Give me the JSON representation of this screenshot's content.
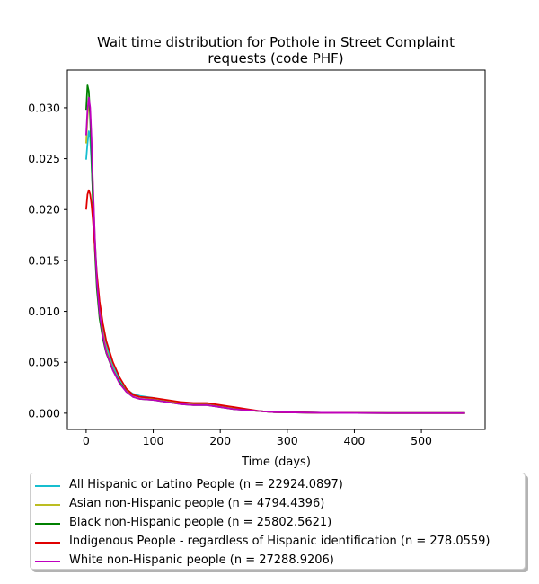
{
  "chart_data": {
    "type": "line",
    "title_lines": [
      "Wait time distribution  for Pothole in Street Complaint",
      "requests (code PHF)"
    ],
    "xlabel": "Time (days)",
    "ylabel": "",
    "xlim": [
      -28,
      595
    ],
    "ylim": [
      -0.0016,
      0.0337
    ],
    "xticks": [
      0,
      100,
      200,
      300,
      400,
      500
    ],
    "xtick_labels": [
      "0",
      "100",
      "200",
      "300",
      "400",
      "500"
    ],
    "yticks": [
      0.0,
      0.005,
      0.01,
      0.015,
      0.02,
      0.025,
      0.03
    ],
    "ytick_labels": [
      "0.000",
      "0.005",
      "0.010",
      "0.015",
      "0.020",
      "0.025",
      "0.030"
    ],
    "grid": false,
    "legend_position": "below plot",
    "series": [
      {
        "name": "All Hispanic or Latino People (n = 22924.0897)",
        "color": "#17becf",
        "x": [
          0,
          2,
          4,
          6,
          8,
          10,
          13,
          16,
          20,
          25,
          30,
          40,
          50,
          60,
          70,
          80,
          100,
          120,
          140,
          160,
          180,
          200,
          220,
          240,
          260,
          280,
          300,
          350,
          400,
          450,
          500,
          565
        ],
        "y": [
          0.0249,
          0.0265,
          0.0277,
          0.027,
          0.0245,
          0.0215,
          0.017,
          0.0135,
          0.0104,
          0.0082,
          0.0066,
          0.0046,
          0.0032,
          0.0023,
          0.0019,
          0.0017,
          0.0015,
          0.0012,
          0.001,
          0.0009,
          0.0009,
          0.0007,
          0.0005,
          0.0003,
          0.0002,
          0.0001,
          8e-05,
          4e-05,
          2e-05,
          1e-05,
          1e-05,
          1e-05
        ]
      },
      {
        "name": "Asian non-Hispanic people (n = 4794.4396)",
        "color": "#bcbd22",
        "x": [
          0,
          2,
          4,
          6,
          8,
          10,
          13,
          16,
          20,
          25,
          30,
          40,
          50,
          60,
          70,
          80,
          100,
          120,
          140,
          160,
          180,
          200,
          220,
          240,
          260,
          280,
          300,
          350,
          400,
          450,
          500,
          565
        ],
        "y": [
          0.0265,
          0.029,
          0.0305,
          0.0295,
          0.0265,
          0.0225,
          0.0172,
          0.0132,
          0.01,
          0.0078,
          0.0062,
          0.0043,
          0.003,
          0.0022,
          0.0018,
          0.0016,
          0.0014,
          0.0012,
          0.001,
          0.0009,
          0.0009,
          0.0007,
          0.0005,
          0.0003,
          0.0002,
          0.0001,
          8e-05,
          4e-05,
          2e-05,
          1e-05,
          1e-05,
          1e-05
        ]
      },
      {
        "name": "Black non-Hispanic people (n = 25802.5621)",
        "color": "#008000",
        "x": [
          0,
          2,
          4,
          6,
          8,
          10,
          13,
          16,
          20,
          25,
          30,
          40,
          50,
          60,
          70,
          80,
          100,
          120,
          140,
          160,
          180,
          200,
          220,
          240,
          260,
          280,
          300,
          350,
          400,
          450,
          500,
          565
        ],
        "y": [
          0.0298,
          0.0322,
          0.0316,
          0.029,
          0.0252,
          0.021,
          0.016,
          0.0122,
          0.0093,
          0.0073,
          0.0059,
          0.0042,
          0.003,
          0.0021,
          0.0016,
          0.0014,
          0.0013,
          0.0011,
          0.0009,
          0.0008,
          0.0008,
          0.0006,
          0.0004,
          0.0003,
          0.0002,
          0.0001,
          8e-05,
          4e-05,
          2e-05,
          1e-05,
          1e-05,
          1e-05
        ]
      },
      {
        "name": "Indigenous People - regardless of Hispanic identification (n = 278.0559)",
        "color": "#e00000",
        "x": [
          0,
          2,
          4,
          6,
          8,
          10,
          13,
          16,
          20,
          25,
          30,
          40,
          50,
          60,
          70,
          80,
          100,
          120,
          140,
          160,
          180,
          200,
          220,
          240,
          260,
          280,
          300,
          350,
          400,
          450,
          500,
          565
        ],
        "y": [
          0.02,
          0.0215,
          0.0219,
          0.0215,
          0.0205,
          0.019,
          0.0163,
          0.0137,
          0.011,
          0.0088,
          0.0071,
          0.005,
          0.0035,
          0.0024,
          0.0018,
          0.0016,
          0.0015,
          0.0013,
          0.0011,
          0.001,
          0.001,
          0.0008,
          0.0006,
          0.0004,
          0.0002,
          0.0001,
          8e-05,
          4e-05,
          2e-05,
          1e-05,
          1e-05,
          1e-05
        ]
      },
      {
        "name": "White non-Hispanic people (n = 27288.9206)",
        "color": "#bf00bf",
        "x": [
          0,
          2,
          4,
          6,
          8,
          10,
          13,
          16,
          20,
          25,
          30,
          40,
          50,
          60,
          70,
          80,
          100,
          120,
          140,
          160,
          180,
          200,
          220,
          240,
          260,
          280,
          300,
          350,
          400,
          450,
          500,
          565
        ],
        "y": [
          0.0273,
          0.0298,
          0.031,
          0.03,
          0.027,
          0.0228,
          0.0172,
          0.013,
          0.0098,
          0.0076,
          0.006,
          0.0042,
          0.0029,
          0.0021,
          0.0016,
          0.0014,
          0.0013,
          0.0011,
          0.0009,
          0.0008,
          0.0008,
          0.0006,
          0.0004,
          0.0003,
          0.0002,
          0.0001,
          8e-05,
          4e-05,
          2e-05,
          1e-05,
          1e-05,
          1e-05
        ]
      }
    ]
  }
}
